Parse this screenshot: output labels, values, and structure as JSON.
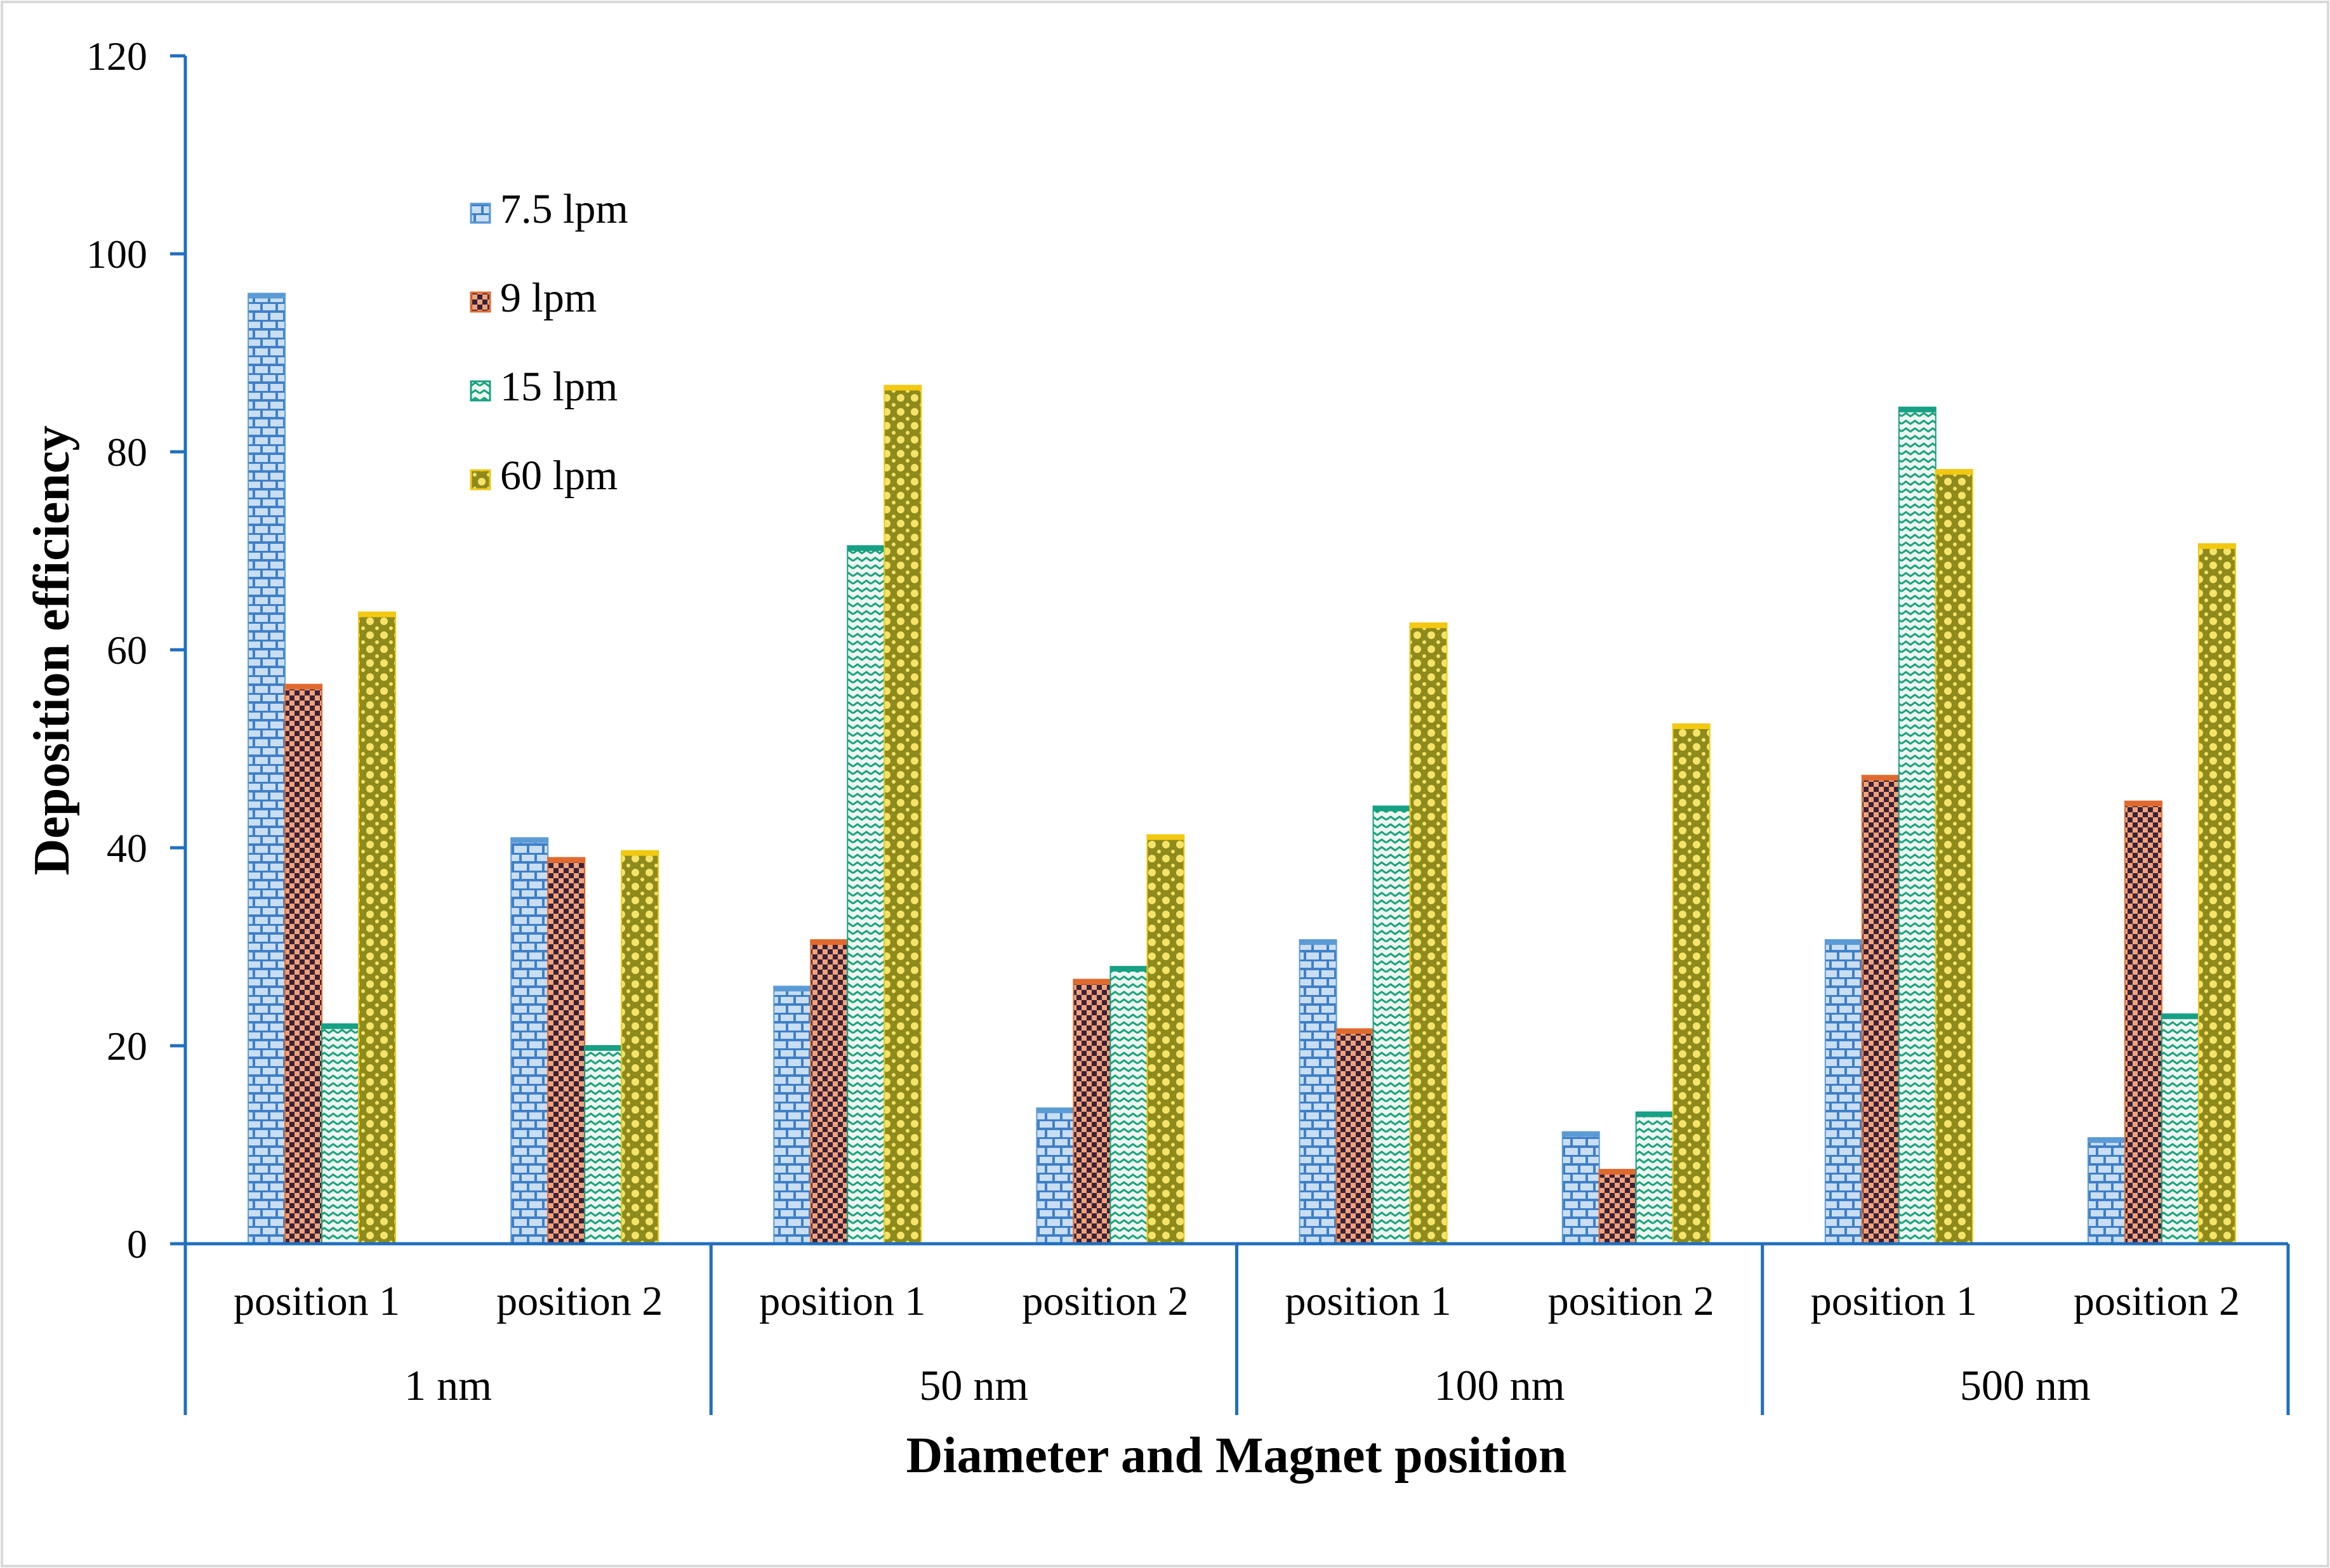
{
  "chart_data": {
    "type": "bar",
    "title": "",
    "xlabel": "Diameter and Magnet position",
    "ylabel": "Deposition efficiency",
    "ylim": [
      0,
      120
    ],
    "yticks": [
      0,
      20,
      40,
      60,
      80,
      100,
      120
    ],
    "grid": false,
    "legend_position": "top-left",
    "groups": [
      {
        "label": "1 nm",
        "positions": [
          "position 1",
          "position 2"
        ]
      },
      {
        "label": "50 nm",
        "positions": [
          "position 1",
          "position 2"
        ]
      },
      {
        "label": "100 nm",
        "positions": [
          "position 1",
          "position 2"
        ]
      },
      {
        "label": "500 nm",
        "positions": [
          "position 1",
          "position 2"
        ]
      }
    ],
    "series": [
      {
        "name": "7.5 lpm",
        "color": "#5b9bd5",
        "light": "#c9def3",
        "pattern": "brick",
        "values": [
          96,
          41,
          26,
          13.7,
          30.7,
          11.3,
          30.7,
          10.7
        ]
      },
      {
        "name": "9 lpm",
        "color": "#e06a2e",
        "light": "#3a2138",
        "pattern": "checker",
        "values": [
          56.5,
          39,
          30.7,
          26.7,
          21.7,
          7.5,
          47.3,
          44.7
        ]
      },
      {
        "name": "15 lpm",
        "color": "#16a085",
        "light": "#e8f4ee",
        "pattern": "wave",
        "values": [
          22.2,
          20,
          70.5,
          28,
          44.2,
          13.3,
          84.5,
          23.2
        ]
      },
      {
        "name": "60 lpm",
        "color": "#f2c811",
        "light": "#8a8a1e",
        "pattern": "dots",
        "values": [
          63.8,
          39.7,
          86.7,
          41.3,
          62.7,
          52.5,
          78.2,
          70.7
        ]
      }
    ]
  }
}
